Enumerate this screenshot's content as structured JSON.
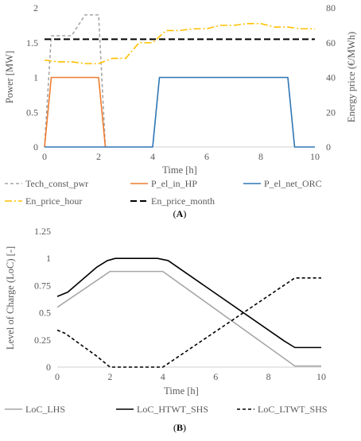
{
  "chart_data": [
    {
      "type": "line",
      "panel_label": [
        "(",
        "A",
        ")"
      ],
      "xlabel": "Time [h]",
      "ylabel": "Power [MW]",
      "y2label": "Energy price (€/MWh)",
      "xlim": [
        0,
        10
      ],
      "ylim": [
        0,
        2
      ],
      "y2lim": [
        0,
        80
      ],
      "xticks": [
        "0",
        "2",
        "4",
        "6",
        "8",
        "10"
      ],
      "yticks": [
        "0",
        "0.5",
        "1",
        "1.5",
        "2"
      ],
      "y2ticks": [
        "0",
        "20",
        "40",
        "60",
        "80"
      ],
      "grid": false,
      "legend_position": "bottom",
      "series": [
        {
          "name": "Tech_const_pwr",
          "axis": "left",
          "color": "#a6a6a6",
          "dash": "dashed",
          "x": [
            0,
            0.25,
            1.0,
            1.5,
            2.0,
            2.25
          ],
          "y": [
            0,
            1.6,
            1.6,
            1.9,
            1.9,
            0
          ]
        },
        {
          "name": "P_el_in_HP",
          "axis": "left",
          "color": "#ed7d31",
          "dash": "solid",
          "x": [
            0,
            0.25,
            2.0,
            2.25
          ],
          "y": [
            0,
            1.0,
            1.0,
            0
          ]
        },
        {
          "name": "P_el_net_ORC",
          "axis": "left",
          "color": "#2e75b6",
          "dash": "solid",
          "x": [
            0,
            4.0,
            4.25,
            9.0,
            9.25,
            10
          ],
          "y": [
            0,
            0,
            1.0,
            1.0,
            0,
            0
          ]
        },
        {
          "name": "En_price_hour",
          "axis": "right",
          "color": "#ffc000",
          "dash": "dashdot",
          "x": [
            0,
            0.5,
            1,
            1.5,
            2,
            2.5,
            3,
            3.5,
            4,
            4.5,
            5,
            5.5,
            6,
            6.5,
            7,
            7.5,
            8,
            8.5,
            9,
            9.5,
            10
          ],
          "y": [
            50,
            49,
            49,
            48,
            48,
            51,
            51,
            60,
            60,
            67,
            67,
            68,
            68,
            70,
            70,
            71,
            71,
            69,
            69,
            68,
            68
          ]
        },
        {
          "name": "En_price_month",
          "axis": "right",
          "color": "#000000",
          "dash": "longdash",
          "x": [
            0,
            10
          ],
          "y": [
            62,
            62
          ]
        }
      ]
    },
    {
      "type": "line",
      "panel_label": [
        "(",
        "B",
        ")"
      ],
      "xlabel": "Time [h]",
      "ylabel": "Level of Charge (LoC) [-]",
      "xlim": [
        0,
        10
      ],
      "ylim": [
        0,
        1.25
      ],
      "xticks": [
        "0",
        "2",
        "4",
        "6",
        "8",
        "10"
      ],
      "yticks": [
        "0",
        "0.25",
        "0.5",
        "0.75",
        "1",
        "1.25"
      ],
      "grid": false,
      "legend_position": "bottom",
      "series": [
        {
          "name": "LoC_LHS",
          "color": "#a6a6a6",
          "dash": "solid",
          "x": [
            0,
            2,
            4,
            9,
            10
          ],
          "y": [
            0.55,
            0.88,
            0.88,
            0.01,
            0.01
          ]
        },
        {
          "name": "LoC_HTWT_SHS",
          "color": "#000000",
          "dash": "solid",
          "x": [
            0,
            0.4,
            1.5,
            1.9,
            2.2,
            3.8,
            4.2,
            8.6,
            9.0,
            10
          ],
          "y": [
            0.65,
            0.69,
            0.92,
            0.98,
            1.0,
            1.0,
            0.98,
            0.24,
            0.18,
            0.18
          ]
        },
        {
          "name": "LoC_LTWT_SHS",
          "color": "#000000",
          "dash": "dashed",
          "x": [
            0,
            0.3,
            1.5,
            2,
            4,
            9,
            10
          ],
          "y": [
            0.34,
            0.31,
            0.1,
            0.0,
            0.0,
            0.82,
            0.82
          ]
        }
      ]
    }
  ]
}
